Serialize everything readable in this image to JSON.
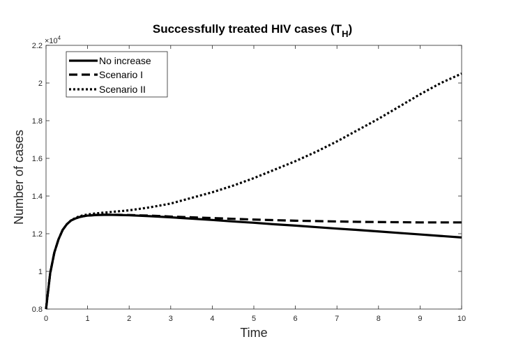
{
  "chart_data": {
    "type": "line",
    "title": "Successfully treated HIV cases (T",
    "title_subscript": "H",
    "title_close": ")",
    "xlabel": "Time",
    "ylabel": "Number of cases",
    "y_multiplier_base": "×10",
    "y_multiplier_exp": "4",
    "xlim": [
      0,
      10
    ],
    "ylim": [
      0.8,
      2.2
    ],
    "xticks": [
      0,
      1,
      2,
      3,
      4,
      5,
      6,
      7,
      8,
      9,
      10
    ],
    "yticks": [
      0.8,
      1,
      1.2,
      1.4,
      1.6,
      1.8,
      2,
      2.2
    ],
    "legend_position": "top-left",
    "x": [
      0,
      0.1,
      0.2,
      0.3,
      0.4,
      0.5,
      0.6,
      0.7,
      0.8,
      0.9,
      1.0,
      1.2,
      1.4,
      1.6,
      1.8,
      2.0,
      2.5,
      3.0,
      3.5,
      4.0,
      4.5,
      5.0,
      5.5,
      6.0,
      6.5,
      7.0,
      7.5,
      8.0,
      8.5,
      9.0,
      9.5,
      10.0
    ],
    "series": [
      {
        "name": "No increase",
        "style": "solid",
        "values": [
          0.8,
          0.99,
          1.1,
          1.17,
          1.22,
          1.25,
          1.27,
          1.28,
          1.288,
          1.293,
          1.296,
          1.299,
          1.3,
          1.3,
          1.299,
          1.298,
          1.293,
          1.287,
          1.28,
          1.273,
          1.265,
          1.258,
          1.25,
          1.243,
          1.235,
          1.227,
          1.22,
          1.212,
          1.204,
          1.196,
          1.188,
          1.18
        ]
      },
      {
        "name": "Scenario I",
        "style": "dashed",
        "values": [
          0.8,
          0.99,
          1.1,
          1.17,
          1.22,
          1.25,
          1.27,
          1.28,
          1.288,
          1.293,
          1.296,
          1.3,
          1.301,
          1.301,
          1.3,
          1.299,
          1.296,
          1.291,
          1.287,
          1.283,
          1.279,
          1.275,
          1.272,
          1.269,
          1.267,
          1.265,
          1.263,
          1.262,
          1.261,
          1.26,
          1.26,
          1.26
        ]
      },
      {
        "name": "Scenario II",
        "style": "dotted",
        "values": [
          0.8,
          0.99,
          1.1,
          1.17,
          1.22,
          1.25,
          1.27,
          1.283,
          1.292,
          1.298,
          1.302,
          1.308,
          1.312,
          1.316,
          1.32,
          1.324,
          1.34,
          1.36,
          1.39,
          1.42,
          1.455,
          1.495,
          1.54,
          1.585,
          1.635,
          1.69,
          1.75,
          1.81,
          1.875,
          1.94,
          2.0,
          2.05
        ]
      }
    ]
  }
}
